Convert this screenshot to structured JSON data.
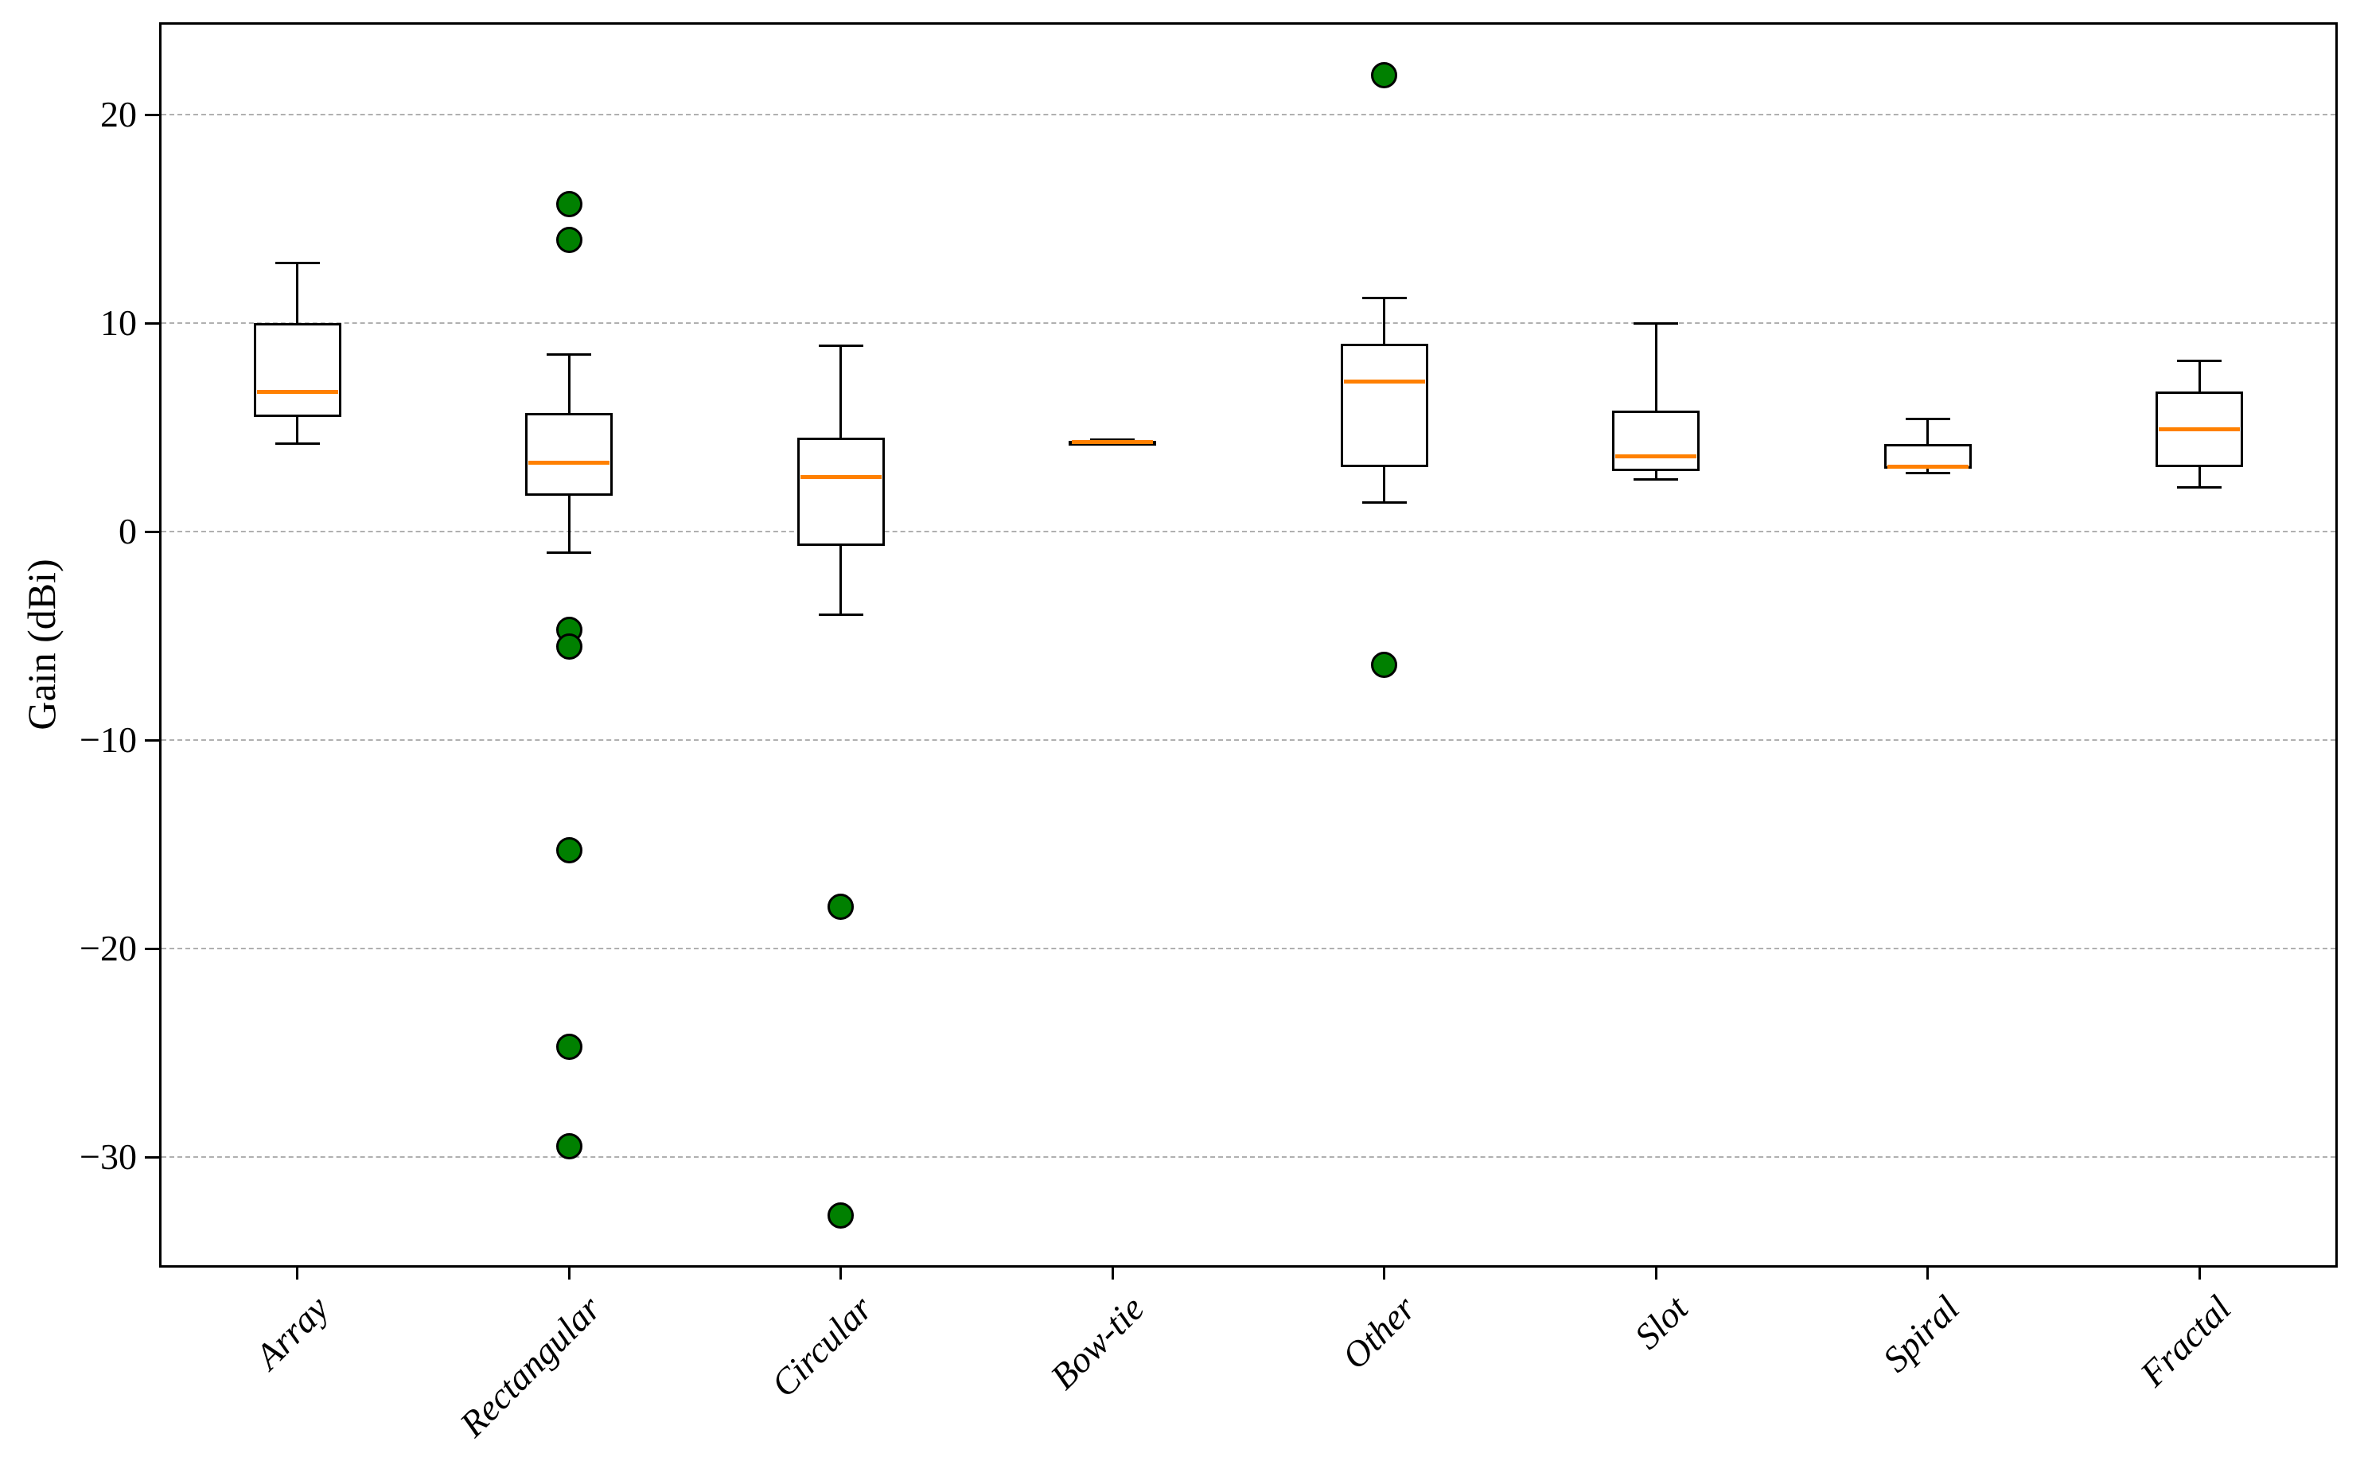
{
  "chart_data": {
    "type": "box",
    "title": "",
    "xlabel": "",
    "ylabel": "Gain (dBi)",
    "categories": [
      "Array",
      "Rectangular",
      "Circular",
      "Bow-tie",
      "Other",
      "Slot",
      "Spiral",
      "Fractal"
    ],
    "yticks": [
      {
        "value": 20,
        "label": "20"
      },
      {
        "value": 10,
        "label": "10"
      },
      {
        "value": 0,
        "label": "0"
      },
      {
        "value": -10,
        "label": "−10"
      },
      {
        "value": -20,
        "label": "−20"
      },
      {
        "value": -30,
        "label": "−30"
      }
    ],
    "ylim": [
      -35.1,
      24.4
    ],
    "grid": {
      "axis": "y",
      "style": "dashed",
      "color": "#b0b0b0"
    },
    "legend": "none",
    "boxes": [
      {
        "category": "Array",
        "whisker_low": 4.2,
        "q1": 5.5,
        "median": 6.7,
        "q3": 10.0,
        "whisker_high": 12.9,
        "outliers": []
      },
      {
        "category": "Rectangular",
        "whisker_low": -1.0,
        "q1": 1.7,
        "median": 3.3,
        "q3": 5.7,
        "whisker_high": 8.5,
        "outliers": [
          15.7,
          14.0,
          -4.7,
          -5.5,
          -15.3,
          -24.7,
          -29.5
        ]
      },
      {
        "category": "Circular",
        "whisker_low": -4.0,
        "q1": -0.7,
        "median": 2.6,
        "q3": 4.5,
        "whisker_high": 8.9,
        "outliers": [
          -18.0,
          -32.8
        ]
      },
      {
        "category": "Bow-tie",
        "whisker_low": 4.2,
        "q1": 4.25,
        "median": 4.3,
        "q3": 4.35,
        "whisker_high": 4.4,
        "outliers": []
      },
      {
        "category": "Other",
        "whisker_low": 1.4,
        "q1": 3.1,
        "median": 7.2,
        "q3": 9.0,
        "whisker_high": 11.2,
        "outliers": [
          21.9,
          -6.4
        ]
      },
      {
        "category": "Slot",
        "whisker_low": 2.5,
        "q1": 2.9,
        "median": 3.6,
        "q3": 5.8,
        "whisker_high": 10.0,
        "outliers": []
      },
      {
        "category": "Spiral",
        "whisker_low": 2.8,
        "q1": 3.0,
        "median": 3.1,
        "q3": 4.2,
        "whisker_high": 5.4,
        "outliers": []
      },
      {
        "category": "Fractal",
        "whisker_low": 2.1,
        "q1": 3.1,
        "median": 4.9,
        "q3": 6.7,
        "whisker_high": 8.2,
        "outliers": []
      }
    ],
    "colors": {
      "box_edge": "#000000",
      "median": "#ff8000",
      "outlier_fill": "#008000",
      "outlier_edge": "#000000",
      "axis": "#000000",
      "background": "#ffffff"
    }
  }
}
